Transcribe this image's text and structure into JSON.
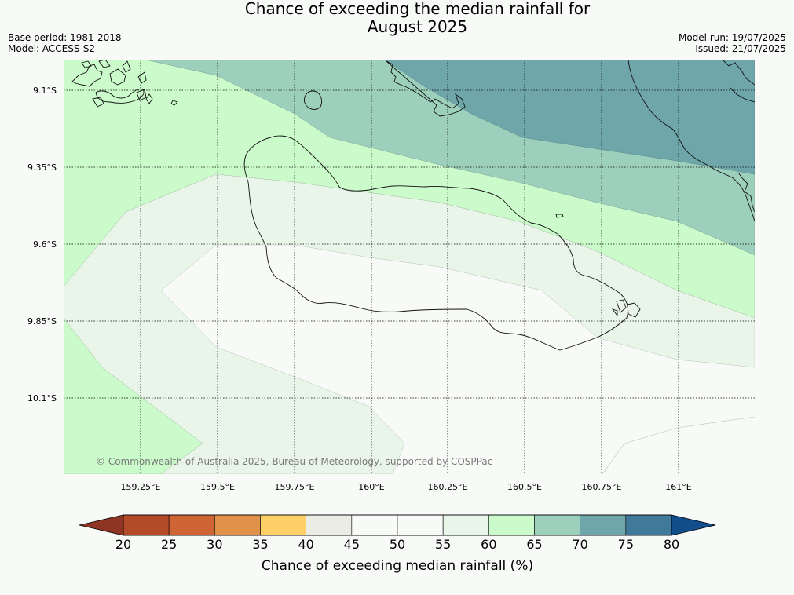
{
  "header": {
    "title_line1": "Chance of exceeding the median rainfall for",
    "title_line2": "August 2025",
    "base_period": "Base period: 1981-2018",
    "model": "Model: ACCESS-S2",
    "model_run": "Model run: 19/07/2025",
    "issued": "Issued: 21/07/2025"
  },
  "map": {
    "lat_labels": [
      "9.1°S",
      "9.35°S",
      "9.6°S",
      "9.85°S",
      "10.1°S"
    ],
    "lon_labels": [
      "159.25°E",
      "159.5°E",
      "159.75°E",
      "160°E",
      "160.25°E",
      "160.5°E",
      "160.75°E",
      "161°E"
    ],
    "copyright": "© Commonwealth of Australia 2025, Bureau of Meteorology, supported by COSPPac"
  },
  "colorbar": {
    "title": "Chance of exceeding median rainfall (%)",
    "ticks": [
      "20",
      "25",
      "30",
      "35",
      "40",
      "45",
      "50",
      "55",
      "60",
      "65",
      "70",
      "75",
      "80"
    ],
    "colors": [
      "#b34a28",
      "#cf6535",
      "#e0924a",
      "#fdd168",
      "#ebece4",
      "#f8faf7",
      "#f8faf7",
      "#e9f5e9",
      "#cbfbcb",
      "#9dd0bc",
      "#6fa6a9",
      "#41799a"
    ],
    "under_color": "#8f3524",
    "over_color": "#134e8c"
  }
}
